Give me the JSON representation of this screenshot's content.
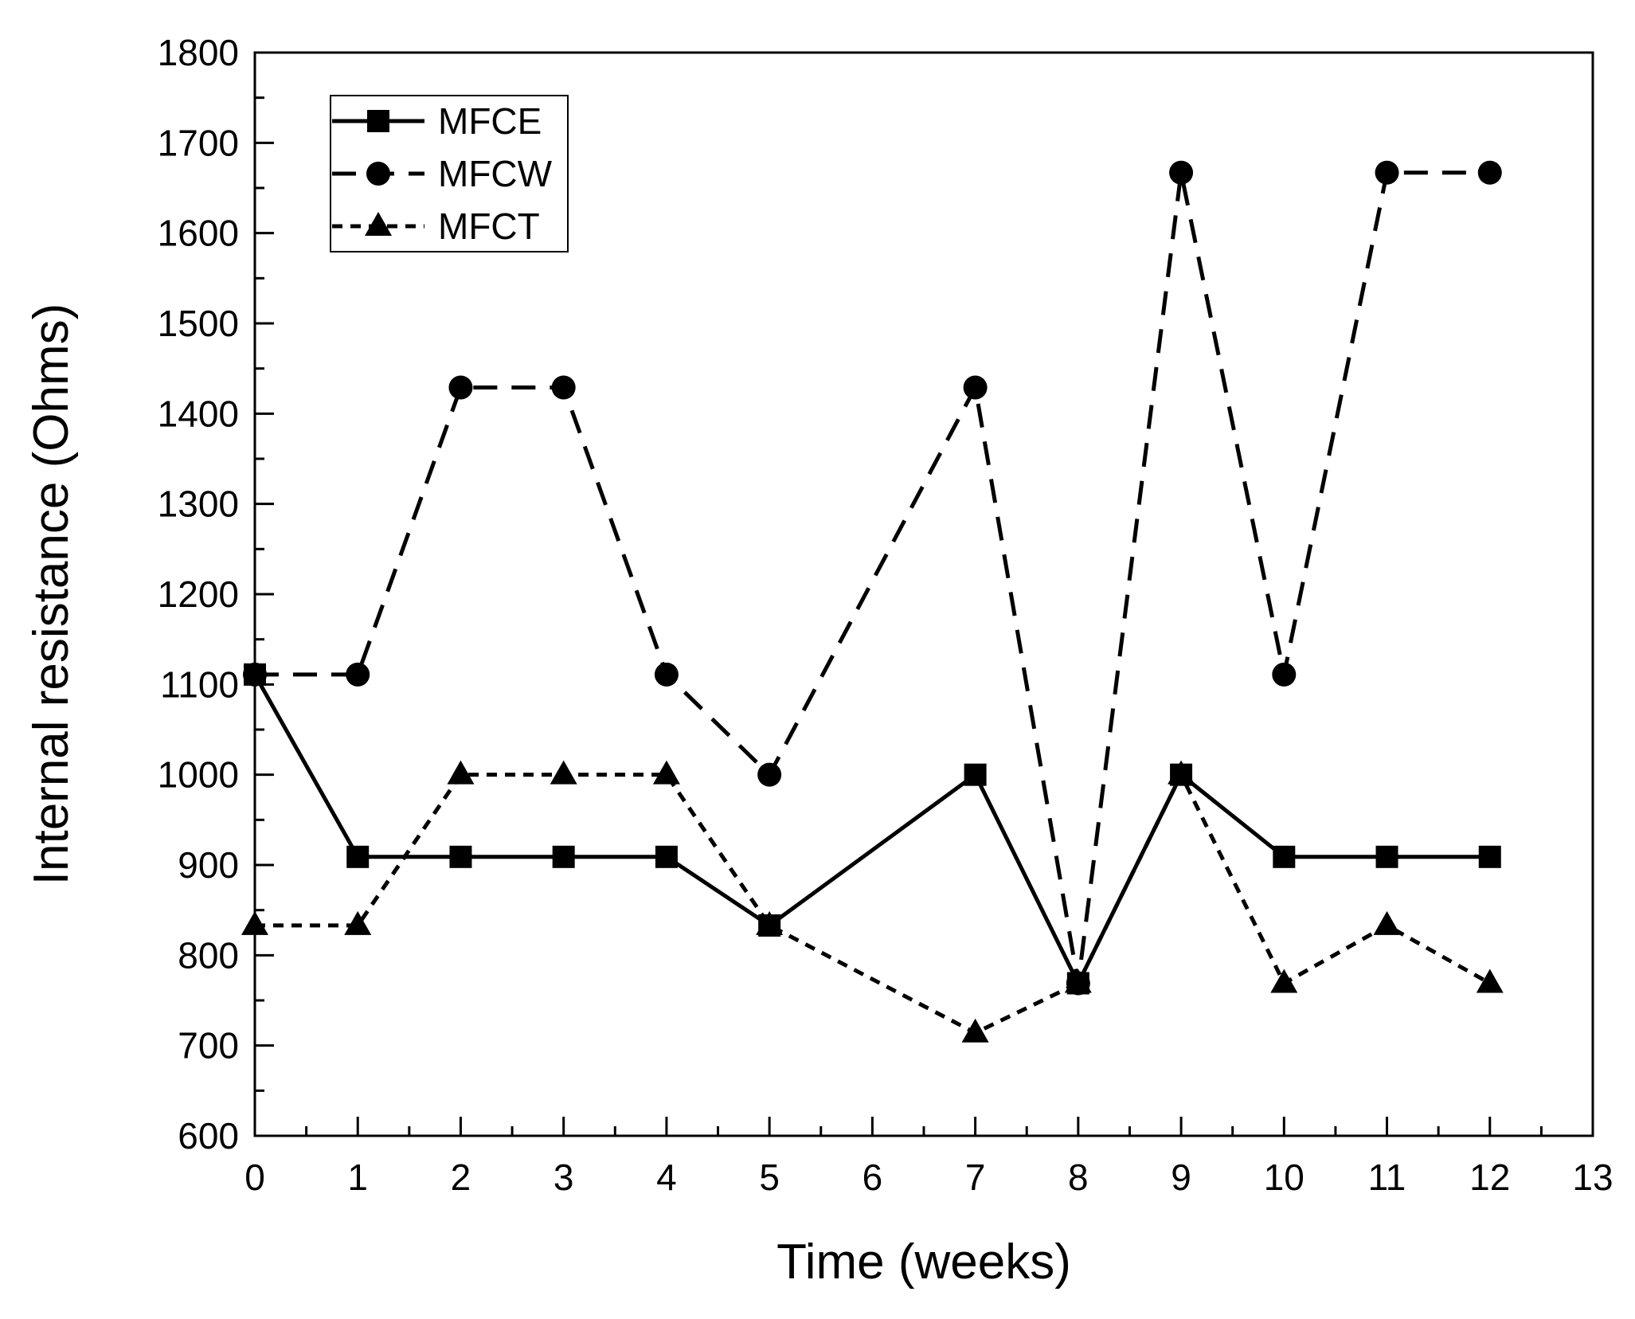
{
  "chart_data": {
    "type": "line",
    "title": "",
    "xlabel": "Time (weeks)",
    "ylabel": "Internal resistance (Ohms)",
    "xlim": [
      0,
      13
    ],
    "ylim": [
      600,
      1800
    ],
    "xticks": [
      0,
      1,
      2,
      3,
      4,
      5,
      6,
      7,
      8,
      9,
      10,
      11,
      12,
      13
    ],
    "xtick_labels": [
      "0",
      "1",
      "2",
      "3",
      "4",
      "5",
      "6",
      "7",
      "8",
      "9",
      "10",
      "11",
      "12",
      "13"
    ],
    "yticks": [
      600,
      700,
      800,
      900,
      1000,
      1100,
      1200,
      1300,
      1400,
      1500,
      1600,
      1700,
      1800
    ],
    "ytick_labels": [
      "600",
      "700",
      "800",
      "900",
      "1000",
      "1100",
      "1200",
      "1300",
      "1400",
      "1500",
      "1600",
      "1700",
      "1800"
    ],
    "grid": false,
    "legend_position": "top-left",
    "series": [
      {
        "name": "MFCE",
        "line_style": "solid",
        "marker": "square",
        "color": "#000000",
        "x": [
          0,
          1,
          2,
          3,
          4,
          5,
          7,
          8,
          9,
          10,
          11,
          12
        ],
        "values": [
          1111,
          909,
          909,
          909,
          909,
          833,
          1000,
          769,
          1000,
          909,
          909,
          909
        ]
      },
      {
        "name": "MFCW",
        "line_style": "dashed",
        "marker": "circle",
        "color": "#000000",
        "x": [
          0,
          1,
          2,
          3,
          4,
          5,
          7,
          8,
          9,
          10,
          11,
          12
        ],
        "values": [
          1111,
          1111,
          1429,
          1429,
          1111,
          1000,
          1429,
          769,
          1667,
          1111,
          1667,
          1667
        ]
      },
      {
        "name": "MFCT",
        "line_style": "dotted",
        "marker": "triangle",
        "color": "#000000",
        "x": [
          0,
          1,
          2,
          3,
          4,
          5,
          7,
          8,
          9,
          10,
          11,
          12
        ],
        "values": [
          833,
          833,
          1000,
          1000,
          1000,
          833,
          714,
          769,
          1000,
          769,
          833,
          769
        ]
      }
    ]
  }
}
